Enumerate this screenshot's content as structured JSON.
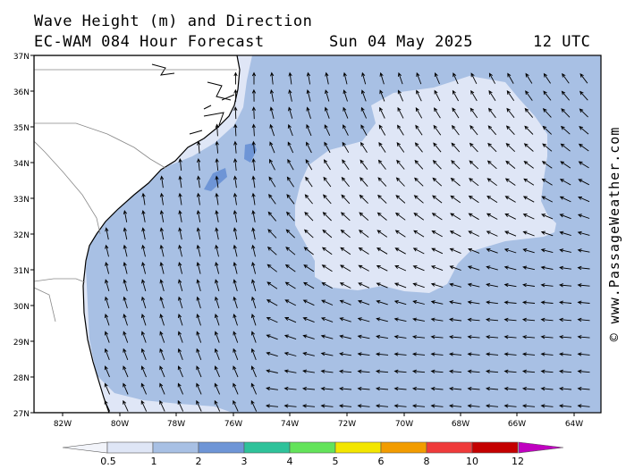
{
  "header": {
    "title_line1": "Wave Height (m) and Direction",
    "title_line2": "EC-WAM 084 Hour Forecast",
    "date": "Sun 04 May 2025",
    "time": "12 UTC"
  },
  "credit": "© www.PassageWeather.com",
  "map": {
    "lat_labels": [
      "37N",
      "36N",
      "35N",
      "34N",
      "33N",
      "32N",
      "31N",
      "30N",
      "29N",
      "28N",
      "27N"
    ],
    "lon_labels": [
      "82W",
      "80W",
      "78W",
      "76W",
      "74W",
      "72W",
      "70W",
      "68W",
      "66W",
      "64W"
    ],
    "colors": {
      "land": "#ffffff",
      "sea_1_2": "#a8c0e4",
      "sea_05_1": "#dfe6f6",
      "sea_2_3": "#6e95d6"
    }
  },
  "legend": {
    "labels": [
      "0.5",
      "1",
      "2",
      "3",
      "4",
      "5",
      "6",
      "8",
      "10",
      "12"
    ],
    "colors": [
      "#dfe6f6",
      "#a8c0e4",
      "#6e95d6",
      "#2ec29a",
      "#63e35a",
      "#f3e600",
      "#f29c00",
      "#ef3a3a",
      "#c40000",
      "#c000c0"
    ]
  }
}
